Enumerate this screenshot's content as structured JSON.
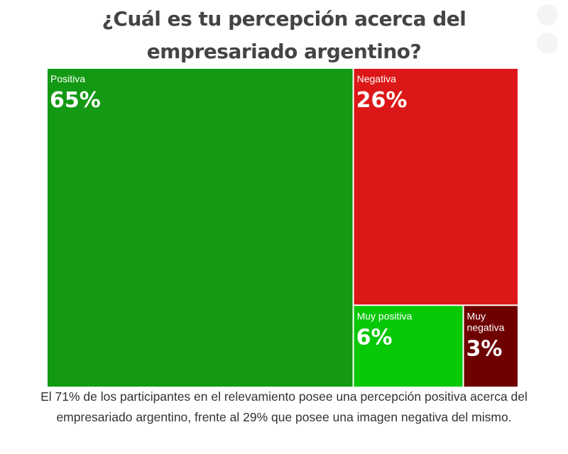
{
  "title": "¿Cuál es tu percepción acerca del empresariado argentino?",
  "caption": "El 71% de los participantes en el relevamiento posee una percepción positiva acerca del empresariado argentino, frente al 29% que posee una imagen negativa del mismo.",
  "chart_data": {
    "type": "treemap",
    "title": "¿Cuál es tu percepción acerca del empresariado argentino?",
    "unit": "%",
    "items": [
      {
        "name": "Positiva",
        "label_lines": [
          "Positiva"
        ],
        "value": 65,
        "value_label": "65%",
        "color": "#139913"
      },
      {
        "name": "Negativa",
        "label_lines": [
          "Negativa"
        ],
        "value": 26,
        "value_label": "26%",
        "color": "#dc1717"
      },
      {
        "name": "Muy positiva",
        "label_lines": [
          "Muy positiva"
        ],
        "value": 6,
        "value_label": "6%",
        "color": "#08c808"
      },
      {
        "name": "Muy negativa",
        "label_lines": [
          "Muy",
          "negativa"
        ],
        "value": 3,
        "value_label": "3%",
        "color": "#6e0000"
      }
    ]
  }
}
